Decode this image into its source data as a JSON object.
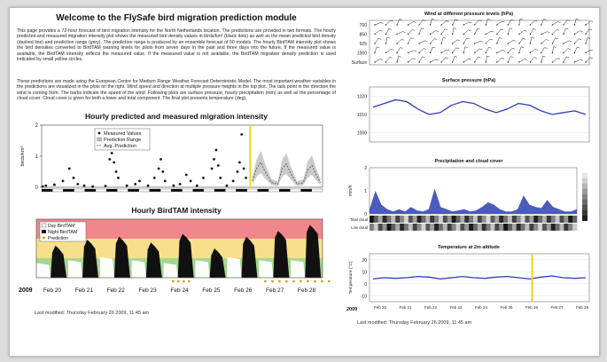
{
  "module": {
    "title": "Welcome to the FlySafe bird migration prediction module",
    "intro_1": "This page provides a 72-hour forecast of bird migration intensity for the North Netherlands location. The predictions are provided in two formats. The hourly predicted and measured migration intensity plot shows the measured bird density values in birds/km² (black dots) as well as the mean predicted bird density (dashed line) and prediction range (grey). The prediction range is produced by an ensemble forecast of 50 models. The hourly BirdTAM intensity plot shows the bird densities converted to BirdTAM warning levels for pilots from seven days in the past and three days into the future. If the measured value is available, the BirdTAM intensity reflects the measured value. If the measured value is not available, the BirdTAM migration density prediction is used indicated by small yellow circles.",
    "intro_2": "These predictions are made using the European Centre for Medium Range Weather Forecast Deterministic Model. The most important weather variables in the predictions are visualized in the plots on the right. Wind speed and direction at multiple pressure heights in the top plot. The tails point in the direction the wind is coming from. The barbs indicate the speed of the wind. Following plots are surface pressure, hourly precipitation (mm) as well as the percentage of cloud cover. Cloud cover is given for both a lower and total component. The final plot presents temperature (deg)."
  },
  "chart_data": [
    {
      "type": "scatter",
      "title": "Hourly predicted and measured migration intensity",
      "ylabel": "birds/km²",
      "yticks": [
        "0",
        "1",
        "2"
      ],
      "ylim": [
        0,
        2
      ],
      "legend": [
        "Measured Values",
        "Prediction Range",
        "Avg. Prediction"
      ],
      "legend_position": "top-left",
      "measured": [
        [
          0.05,
          0.02
        ],
        [
          0.2,
          0.05
        ],
        [
          0.6,
          0.08
        ],
        [
          1.0,
          0.2
        ],
        [
          1.3,
          0.6
        ],
        [
          1.5,
          0.3
        ],
        [
          1.7,
          0.1
        ],
        [
          2.0,
          0.05
        ],
        [
          2.4,
          0.02
        ],
        [
          3.0,
          0.04
        ],
        [
          3.2,
          0.9
        ],
        [
          3.3,
          1.1
        ],
        [
          3.4,
          0.8
        ],
        [
          3.5,
          0.5
        ],
        [
          3.6,
          0.3
        ],
        [
          4.0,
          0.05
        ],
        [
          4.4,
          0.1
        ],
        [
          4.6,
          0.2
        ],
        [
          5.0,
          0.05
        ],
        [
          5.3,
          0.3
        ],
        [
          5.5,
          0.6
        ],
        [
          5.6,
          0.9
        ],
        [
          5.7,
          0.5
        ],
        [
          5.8,
          0.2
        ],
        [
          6.2,
          0.05
        ],
        [
          6.5,
          0.1
        ],
        [
          6.8,
          0.4
        ],
        [
          7.0,
          0.2
        ],
        [
          7.3,
          0.05
        ],
        [
          7.6,
          0.3
        ],
        [
          8.0,
          0.6
        ],
        [
          8.1,
          0.9
        ],
        [
          8.2,
          1.2
        ],
        [
          8.3,
          0.7
        ],
        [
          8.4,
          0.3
        ],
        [
          8.7,
          0.05
        ],
        [
          9.0,
          0.2
        ],
        [
          9.2,
          0.5
        ],
        [
          9.3,
          0.8
        ],
        [
          9.4,
          1.7
        ],
        [
          9.5,
          0.6
        ],
        [
          9.6,
          0.3
        ]
      ],
      "avg_prediction": [
        [
          9.9,
          0.2
        ],
        [
          10.1,
          0.6
        ],
        [
          10.3,
          0.8
        ],
        [
          10.5,
          0.5
        ],
        [
          10.8,
          0.15
        ],
        [
          11.1,
          0.1
        ],
        [
          11.3,
          0.6
        ],
        [
          11.5,
          0.75
        ],
        [
          11.7,
          0.45
        ],
        [
          12.0,
          0.1
        ],
        [
          12.3,
          0.15
        ],
        [
          12.5,
          0.55
        ],
        [
          12.7,
          0.7
        ],
        [
          12.9,
          0.4
        ],
        [
          13.1,
          0.15
        ]
      ],
      "now_x": 9.8,
      "xlim": [
        0,
        13.2
      ]
    },
    {
      "type": "area",
      "title": "Hourly BirdTAM intensity",
      "legend": [
        "Day BirdTAM",
        "Night BirdTAM",
        "Prediction"
      ],
      "legend_position": "top-left",
      "bands": [
        {
          "level": "red",
          "color": "#f0878c"
        },
        {
          "level": "yellow",
          "color": "#f7e08c"
        },
        {
          "level": "green",
          "color": "#a6d690"
        }
      ],
      "x_year": "2009",
      "x_ticks": [
        "Feb 20",
        "Feb 21",
        "Feb 22",
        "Feb 23",
        "Feb 24",
        "Feb 25",
        "Feb 26",
        "Feb 27",
        "Feb 28"
      ],
      "night_peaks": [
        0.55,
        0.65,
        0.7,
        0.6,
        0.75,
        0.5,
        0.7,
        0.8,
        0.9
      ],
      "day_levels": [
        0.25,
        0.3,
        0.35,
        0.3,
        0.25,
        0.3,
        0.35,
        0.3,
        0.3
      ]
    },
    {
      "type": "scatter",
      "title": "Wind at different pressure levels (hPa)",
      "y_labels": [
        "700",
        "850",
        "925",
        "1000",
        "Surface"
      ],
      "columns": 20
    },
    {
      "type": "line",
      "title": "Surface pressure (hPa)",
      "yticks": [
        "1020",
        "1010",
        "1000"
      ],
      "ylim": [
        995,
        1025
      ],
      "values": [
        1014,
        1016,
        1018,
        1017,
        1013,
        1010,
        1011,
        1015,
        1017,
        1016,
        1013,
        1011,
        1013,
        1016,
        1015,
        1012,
        1010,
        1011,
        1012,
        1010
      ]
    },
    {
      "type": "area",
      "title": "Precipitation and cloud cover",
      "ylabel": "mm/h",
      "yticks": [
        "0",
        "1",
        "2"
      ],
      "cloud_rows": [
        "Total cloud",
        "Low cloud"
      ],
      "values": [
        0.2,
        1.0,
        0.4,
        0.2,
        0.1,
        0.2,
        0.1,
        0.3,
        0.15,
        0.1,
        0.2,
        1.1,
        0.3,
        0.2,
        0.1,
        0.15,
        0.2,
        0.1,
        0.15,
        0.3,
        0.5,
        0.4,
        0.2,
        0.1,
        0.1,
        0.2,
        0.8,
        0.4,
        0.3,
        0.25,
        0.6,
        0.3,
        0.2,
        0.1,
        0.1,
        0.2
      ]
    },
    {
      "type": "line",
      "title": "Temperature at 2m altitude",
      "ylabel": "Temperature (°C)",
      "yticks": [
        "20",
        "10",
        "0",
        "-10"
      ],
      "ylim": [
        -15,
        25
      ],
      "values": [
        4,
        5,
        4.5,
        5,
        6,
        5.5,
        4,
        5,
        6,
        5,
        4.5,
        5.5,
        6,
        5,
        4,
        5.5,
        6.5,
        5,
        4.5,
        5
      ],
      "x_year": "2009",
      "x_ticks": [
        "Feb 20",
        "Feb 21",
        "Feb 22",
        "Feb 23",
        "Feb 24",
        "Feb 25",
        "Feb 26",
        "Feb 27",
        "Feb 28"
      ],
      "now_x": 0.74
    }
  ],
  "footer": {
    "left_last_modified": "Last modified: Thursday February 26 2009, 11:45 am",
    "right_last_modified": "Last modified: Thursday February 26 2009, 11:45 am"
  },
  "colors": {
    "line_blue": "#2c3fb0",
    "now_line": "#f2d21b",
    "measured": "#111111",
    "prediction_range": "#bdbdbd"
  }
}
